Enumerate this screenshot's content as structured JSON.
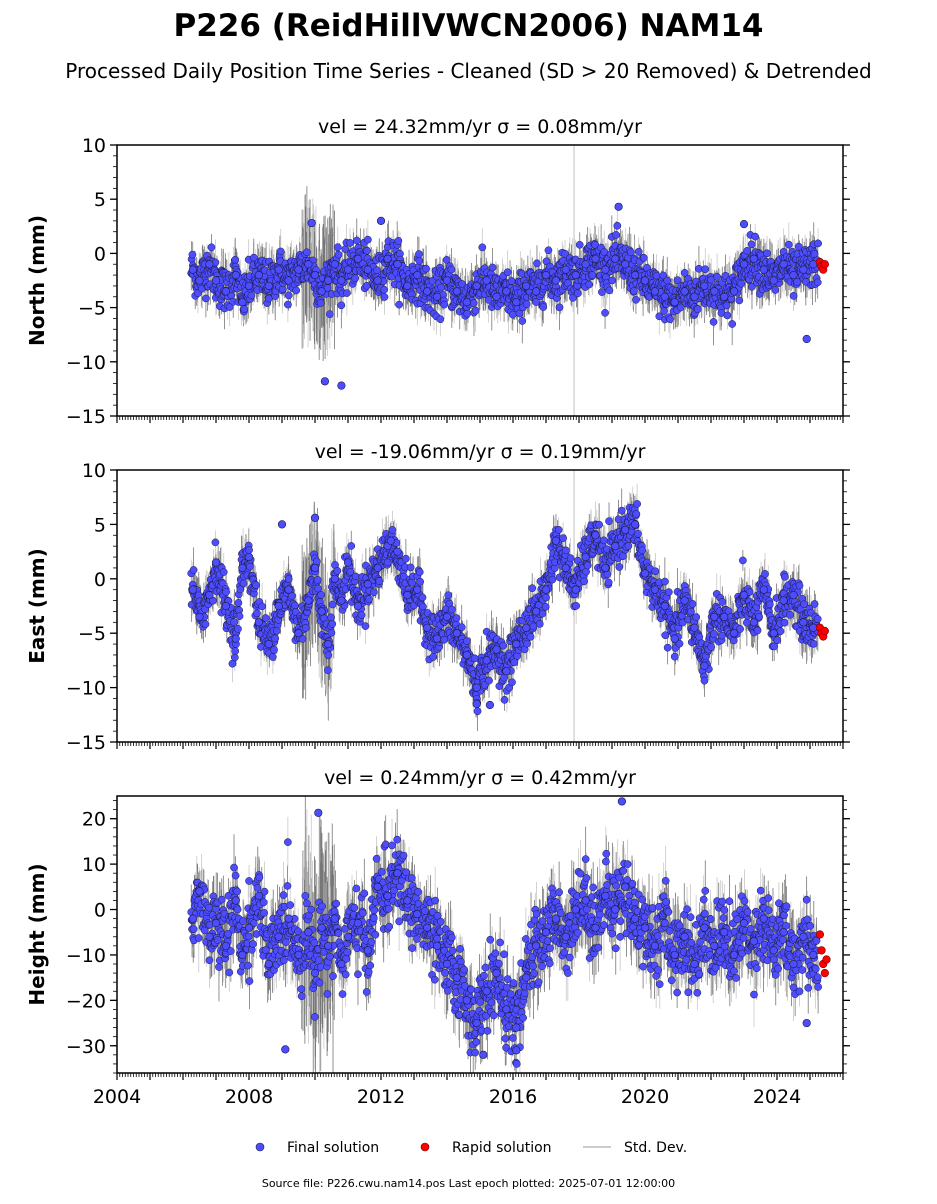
{
  "title": "P226 (ReidHillVWCN2006) NAM14",
  "subtitle": "Processed Daily Position Time Series - Cleaned (SD > 20 Removed) & Detrended",
  "footer": "Source file: P226.cwu.nam14.pos  Last epoch plotted: 2025-07-01 12:00:00",
  "legend": {
    "placement": "bottom-center",
    "items": [
      {
        "label": "Final solution",
        "color": "#4d4dff",
        "marker": "circle"
      },
      {
        "label": "Rapid solution",
        "color": "#ff0000",
        "marker": "circle"
      },
      {
        "label": "Std. Dev.",
        "color": "#cccccc",
        "marker": "line"
      }
    ]
  },
  "colors": {
    "final": "#4d4dff",
    "rapid": "#ff0000",
    "stddev": "#bbbbbb",
    "edge": "#1a1a40"
  },
  "chart_data": [
    {
      "type": "scatter",
      "panel": "north",
      "title": "vel = 24.32mm/yr   σ = 0.08mm/yr",
      "ylabel": "North (mm)",
      "xlim": [
        2004,
        2026
      ],
      "ylim": [
        -15,
        10
      ],
      "yticks": [
        10,
        5,
        0,
        -5,
        -10,
        -15
      ],
      "ytick_labels": [
        "10",
        "5",
        "0",
        "−5",
        "−10",
        "−15"
      ],
      "xticks": [
        2004,
        2008,
        2012,
        2016,
        2020,
        2024
      ],
      "xtick_labels": [],
      "grid": false,
      "series": [
        {
          "name": "Final solution",
          "x": [
            2006.3,
            2006.5,
            2006.8,
            2007.0,
            2007.3,
            2007.6,
            2007.8,
            2008.0,
            2008.3,
            2008.6,
            2008.9,
            2009.2,
            2009.5,
            2009.8,
            2010.0,
            2010.2,
            2010.4,
            2010.6,
            2010.8,
            2011.0,
            2011.3,
            2011.6,
            2011.9,
            2012.2,
            2012.5,
            2012.8,
            2013.1,
            2013.4,
            2013.7,
            2014.0,
            2014.3,
            2014.6,
            2014.9,
            2015.2,
            2015.5,
            2015.8,
            2016.1,
            2016.4,
            2016.7,
            2017.0,
            2017.3,
            2017.6,
            2017.9,
            2018.2,
            2018.5,
            2018.8,
            2019.1,
            2019.4,
            2019.7,
            2020.0,
            2020.3,
            2020.6,
            2020.9,
            2021.2,
            2021.5,
            2021.8,
            2022.1,
            2022.4,
            2022.7,
            2023.0,
            2023.3,
            2023.6,
            2023.9,
            2024.2,
            2024.5,
            2024.8,
            2025.1,
            2009.9,
            2010.3,
            2010.8,
            2012.0,
            2019.2,
            2023.0,
            2024.9
          ],
          "y": [
            -1.5,
            -2.5,
            -1.0,
            -2.5,
            -3.5,
            -2.0,
            -4.5,
            -3.0,
            -2.0,
            -3.0,
            -1.5,
            -2.5,
            -1.5,
            -1.0,
            -2.0,
            -3.5,
            -2.5,
            -1.0,
            -2.5,
            -1.5,
            -0.5,
            -1.5,
            -2.5,
            -0.5,
            -1.0,
            -3.0,
            -2.0,
            -3.5,
            -4.0,
            -2.5,
            -3.5,
            -4.5,
            -3.0,
            -2.5,
            -4.0,
            -3.5,
            -4.5,
            -3.0,
            -3.5,
            -2.0,
            -2.5,
            -1.5,
            -2.0,
            -1.0,
            -0.5,
            -1.5,
            -0.5,
            -1.0,
            -2.0,
            -2.5,
            -3.5,
            -4.0,
            -4.5,
            -3.5,
            -4.0,
            -3.0,
            -3.5,
            -4.0,
            -3.5,
            -1.0,
            -0.5,
            -1.5,
            -2.5,
            -1.0,
            -2.0,
            -1.5,
            -1.0,
            2.8,
            -11.8,
            -12.2,
            3.0,
            4.3,
            2.7,
            -7.9
          ]
        },
        {
          "name": "Rapid solution",
          "x": [
            2025.3,
            2025.35,
            2025.4,
            2025.45
          ],
          "y": [
            -0.8,
            -1.2,
            -1.5,
            -1.0
          ]
        }
      ]
    },
    {
      "type": "scatter",
      "panel": "east",
      "title": "vel = -19.06mm/yr   σ = 0.19mm/yr",
      "ylabel": "East (mm)",
      "xlim": [
        2004,
        2026
      ],
      "ylim": [
        -15,
        10
      ],
      "yticks": [
        10,
        5,
        0,
        -5,
        -10,
        -15
      ],
      "ytick_labels": [
        "10",
        "5",
        "0",
        "−5",
        "−10",
        "−15"
      ],
      "xticks": [
        2004,
        2008,
        2012,
        2016,
        2020,
        2024
      ],
      "xtick_labels": [],
      "grid": false,
      "series": [
        {
          "name": "Final solution",
          "x": [
            2006.3,
            2006.5,
            2006.8,
            2007.0,
            2007.3,
            2007.6,
            2007.8,
            2008.0,
            2008.3,
            2008.6,
            2008.9,
            2009.2,
            2009.5,
            2009.8,
            2010.0,
            2010.2,
            2010.4,
            2010.6,
            2010.8,
            2011.0,
            2011.3,
            2011.6,
            2011.9,
            2012.2,
            2012.5,
            2012.8,
            2013.1,
            2013.4,
            2013.7,
            2014.0,
            2014.3,
            2014.6,
            2014.9,
            2015.2,
            2015.5,
            2015.8,
            2016.1,
            2016.4,
            2016.7,
            2017.0,
            2017.3,
            2017.6,
            2017.9,
            2018.2,
            2018.5,
            2018.8,
            2019.1,
            2019.4,
            2019.7,
            2020.0,
            2020.3,
            2020.6,
            2020.9,
            2021.2,
            2021.5,
            2021.8,
            2022.1,
            2022.4,
            2022.7,
            2023.0,
            2023.3,
            2023.6,
            2023.9,
            2024.2,
            2024.5,
            2024.8,
            2025.1,
            2009.0,
            2010.0,
            2014.9,
            2015.3,
            2012.3
          ],
          "y": [
            -1.0,
            -3.5,
            -1.5,
            1.5,
            -2.5,
            -5.5,
            1.0,
            2.0,
            -4.0,
            -6.0,
            -2.5,
            -1.0,
            -5.0,
            -2.0,
            1.0,
            -3.0,
            -6.0,
            0.0,
            -2.0,
            1.5,
            -2.5,
            -0.5,
            1.0,
            3.0,
            2.5,
            -1.5,
            -1.0,
            -4.5,
            -5.5,
            -3.5,
            -5.0,
            -7.0,
            -10.0,
            -7.5,
            -6.5,
            -8.5,
            -6.0,
            -4.5,
            -3.0,
            -1.0,
            3.5,
            1.0,
            -1.0,
            2.0,
            4.0,
            1.0,
            3.0,
            4.5,
            5.0,
            0.5,
            -1.0,
            -2.5,
            -5.5,
            -2.0,
            -4.5,
            -8.0,
            -3.5,
            -3.5,
            -5.0,
            -1.5,
            -4.0,
            -1.0,
            -5.0,
            -2.0,
            -1.5,
            -4.0,
            -4.5,
            5.0,
            5.6,
            -11.5,
            -11.6,
            3.5
          ]
        },
        {
          "name": "Rapid solution",
          "x": [
            2025.3,
            2025.35,
            2025.4,
            2025.45
          ],
          "y": [
            -4.5,
            -5.0,
            -5.3,
            -4.8
          ]
        }
      ]
    },
    {
      "type": "scatter",
      "panel": "height",
      "title": "vel = 0.24mm/yr   σ = 0.42mm/yr",
      "ylabel": "Height (mm)",
      "xlim": [
        2004,
        2026
      ],
      "ylim": [
        -36,
        25
      ],
      "yticks": [
        20,
        10,
        0,
        -10,
        -20,
        -30
      ],
      "ytick_labels": [
        "20",
        "10",
        "0",
        "−10",
        "−20",
        "−30"
      ],
      "xticks": [
        2004,
        2008,
        2012,
        2016,
        2020,
        2024
      ],
      "xtick_labels": [
        "2004",
        "2008",
        "2012",
        "2016",
        "2020",
        "2024"
      ],
      "grid": false,
      "series": [
        {
          "name": "Final solution",
          "x": [
            2006.3,
            2006.5,
            2006.8,
            2007.0,
            2007.3,
            2007.6,
            2007.8,
            2008.0,
            2008.3,
            2008.6,
            2008.9,
            2009.2,
            2009.5,
            2009.8,
            2010.0,
            2010.2,
            2010.4,
            2010.6,
            2010.8,
            2011.0,
            2011.3,
            2011.6,
            2011.9,
            2012.2,
            2012.5,
            2012.8,
            2013.1,
            2013.4,
            2013.7,
            2014.0,
            2014.3,
            2014.6,
            2014.9,
            2015.2,
            2015.5,
            2015.8,
            2016.1,
            2016.4,
            2016.7,
            2017.0,
            2017.3,
            2017.6,
            2017.9,
            2018.2,
            2018.5,
            2018.8,
            2019.1,
            2019.4,
            2019.7,
            2020.0,
            2020.3,
            2020.6,
            2020.9,
            2021.2,
            2021.5,
            2021.8,
            2022.1,
            2022.4,
            2022.7,
            2023.0,
            2023.3,
            2023.6,
            2023.9,
            2024.2,
            2024.5,
            2024.8,
            2025.1,
            2010.1,
            2019.3,
            2009.1,
            2015.1,
            2016.1,
            2024.9
          ],
          "y": [
            -2.0,
            4.0,
            -6.0,
            -3.0,
            -8.0,
            2.0,
            -10.0,
            -4.0,
            3.0,
            -12.0,
            -6.0,
            -2.0,
            -10.0,
            -5.0,
            -14.0,
            -4.0,
            -8.0,
            -2.0,
            -12.0,
            -6.0,
            -3.0,
            -9.0,
            5.0,
            3.0,
            8.0,
            2.0,
            -1.0,
            -4.0,
            -8.0,
            -12.0,
            -15.0,
            -20.0,
            -25.0,
            -18.0,
            -14.0,
            -22.0,
            -26.0,
            -15.0,
            -8.0,
            -5.0,
            -2.0,
            -6.0,
            0.0,
            2.0,
            -4.0,
            3.0,
            0.0,
            5.0,
            -2.0,
            -4.0,
            -8.0,
            -3.0,
            -10.0,
            -6.0,
            -12.0,
            -4.0,
            -8.0,
            -5.0,
            -10.0,
            -3.0,
            -7.0,
            -2.0,
            -9.0,
            -5.0,
            -12.0,
            -6.0,
            -10.0,
            21.3,
            23.8,
            -30.8,
            -32.0,
            -31.0,
            -25.0
          ]
        },
        {
          "name": "Rapid solution",
          "x": [
            2025.3,
            2025.35,
            2025.4,
            2025.45,
            2025.5
          ],
          "y": [
            -5.5,
            -9.0,
            -12.0,
            -14.0,
            -11.0
          ]
        }
      ]
    }
  ]
}
